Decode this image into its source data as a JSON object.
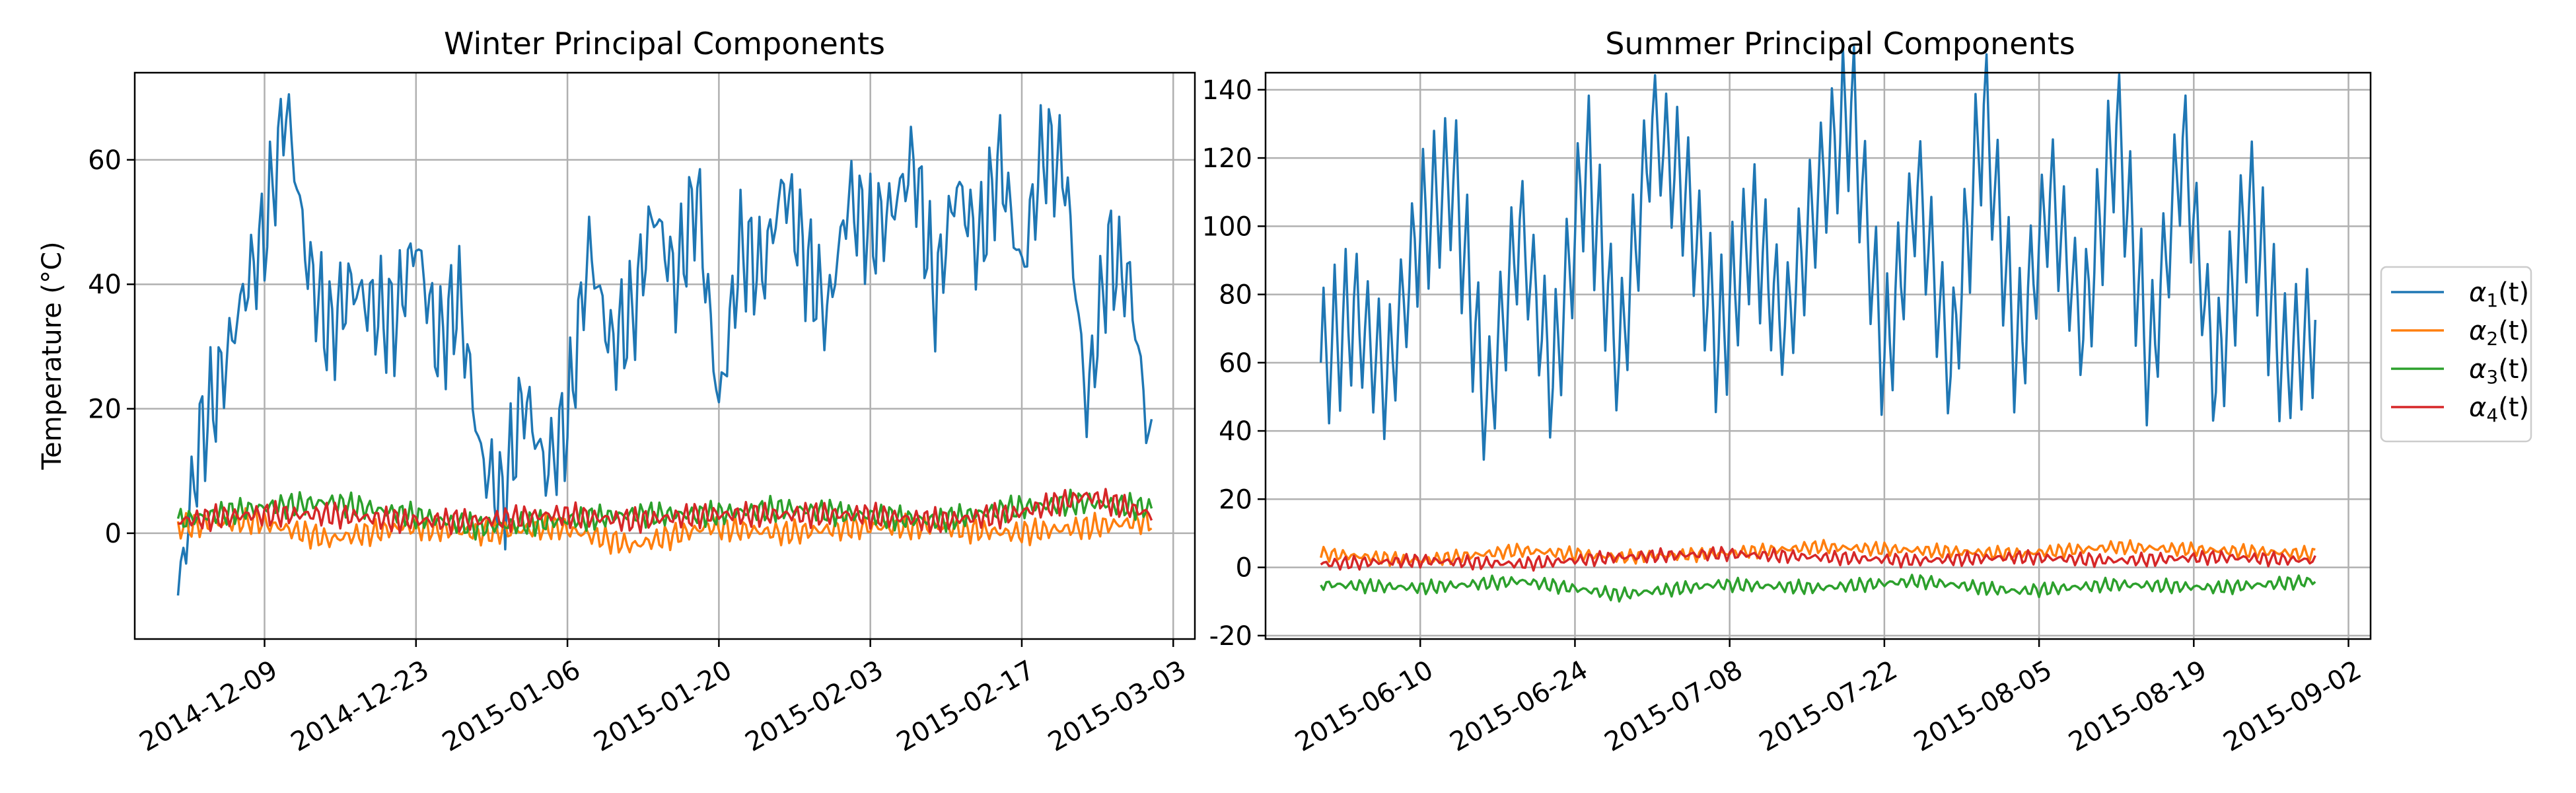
{
  "chart_data": [
    {
      "type": "line",
      "title": "Winter Principal Components",
      "xlabel": "",
      "ylabel": "Temperature ($^\\circ$C)",
      "ylabel_display": "Temperature (°C)",
      "x_ticks": [
        "2014-12-09",
        "2014-12-23",
        "2015-01-06",
        "2015-01-20",
        "2015-02-03",
        "2015-02-17",
        "2015-03-03"
      ],
      "xlim": [
        "2014-11-27",
        "2015-03-05"
      ],
      "y_ticks": [
        0,
        20,
        40,
        60
      ],
      "ylim": [
        -17,
        74
      ],
      "grid": true,
      "series": [
        {
          "key": "a1",
          "color": "#1f77b4",
          "x": [
            "2014-12-01",
            "2014-12-03",
            "2014-12-05",
            "2014-12-07",
            "2014-12-09",
            "2014-12-11",
            "2014-12-13",
            "2014-12-15",
            "2014-12-17",
            "2014-12-19",
            "2014-12-21",
            "2014-12-23",
            "2014-12-25",
            "2014-12-27",
            "2014-12-29",
            "2014-12-31",
            "2015-01-02",
            "2015-01-04",
            "2015-01-06",
            "2015-01-08",
            "2015-01-10",
            "2015-01-12",
            "2015-01-14",
            "2015-01-16",
            "2015-01-18",
            "2015-01-20",
            "2015-01-22",
            "2015-01-24",
            "2015-01-26",
            "2015-01-28",
            "2015-01-30",
            "2015-02-01",
            "2015-02-03",
            "2015-02-05",
            "2015-02-07",
            "2015-02-09",
            "2015-02-11",
            "2015-02-13",
            "2015-02-15",
            "2015-02-17",
            "2015-02-19",
            "2015-02-21",
            "2015-02-23",
            "2015-02-25",
            "2015-02-27",
            "2015-03-01"
          ],
          "values": [
            -10,
            15,
            25,
            38,
            48,
            69,
            43,
            32,
            40,
            36,
            34,
            47,
            30,
            38,
            12,
            5,
            22,
            10,
            18,
            46,
            30,
            35,
            52,
            40,
            55,
            20,
            46,
            42,
            56,
            44,
            35,
            54,
            48,
            52,
            60,
            38,
            56,
            46,
            60,
            42,
            62,
            58,
            20,
            45,
            40,
            12
          ]
        },
        {
          "key": "a2",
          "color": "#ff7f0e",
          "x": [
            "2014-12-01",
            "2014-12-08",
            "2014-12-15",
            "2014-12-22",
            "2014-12-29",
            "2015-01-05",
            "2015-01-12",
            "2015-01-19",
            "2015-01-26",
            "2015-02-02",
            "2015-02-09",
            "2015-02-16",
            "2015-02-23",
            "2015-03-01"
          ],
          "values": [
            1,
            2,
            -1,
            1,
            0,
            1,
            -2,
            1,
            0,
            1,
            1,
            0,
            1,
            2
          ]
        },
        {
          "key": "a3",
          "color": "#2ca02c",
          "x": [
            "2014-12-01",
            "2014-12-08",
            "2014-12-15",
            "2014-12-22",
            "2014-12-29",
            "2015-01-05",
            "2015-01-12",
            "2015-01-19",
            "2015-01-26",
            "2015-02-02",
            "2015-02-09",
            "2015-02-16",
            "2015-02-23",
            "2015-03-01"
          ],
          "values": [
            2,
            4,
            5,
            3,
            1,
            2,
            3,
            3,
            4,
            3,
            2,
            4,
            5,
            4
          ]
        },
        {
          "key": "a4",
          "color": "#d62728",
          "x": [
            "2014-12-01",
            "2014-12-08",
            "2014-12-15",
            "2014-12-22",
            "2014-12-29",
            "2015-01-05",
            "2015-01-12",
            "2015-01-19",
            "2015-01-26",
            "2015-02-02",
            "2015-02-09",
            "2015-02-16",
            "2015-02-23",
            "2015-03-01"
          ],
          "values": [
            2,
            3,
            3,
            2,
            2,
            3,
            2,
            3,
            3,
            3,
            2,
            3,
            6,
            3
          ]
        }
      ]
    },
    {
      "type": "line",
      "title": "Summer Principal Components",
      "xlabel": "",
      "ylabel": "",
      "x_ticks": [
        "2015-06-10",
        "2015-06-24",
        "2015-07-08",
        "2015-07-22",
        "2015-08-05",
        "2015-08-19",
        "2015-09-02"
      ],
      "xlim": [
        "2015-05-27",
        "2015-09-04"
      ],
      "y_ticks": [
        -20,
        0,
        20,
        40,
        60,
        80,
        100,
        120,
        140
      ],
      "ylim": [
        -21,
        145
      ],
      "grid": true,
      "series": [
        {
          "key": "a1",
          "color": "#1f77b4",
          "x": [
            "2015-06-01",
            "2015-06-04",
            "2015-06-07",
            "2015-06-10",
            "2015-06-13",
            "2015-06-16",
            "2015-06-19",
            "2015-06-22",
            "2015-06-25",
            "2015-06-28",
            "2015-07-01",
            "2015-07-04",
            "2015-07-07",
            "2015-07-10",
            "2015-07-13",
            "2015-07-16",
            "2015-07-19",
            "2015-07-22",
            "2015-07-25",
            "2015-07-28",
            "2015-07-31",
            "2015-08-03",
            "2015-08-06",
            "2015-08-09",
            "2015-08-12",
            "2015-08-15",
            "2015-08-18",
            "2015-08-21",
            "2015-08-24",
            "2015-08-27",
            "2015-08-30"
          ],
          "values": [
            60,
            75,
            55,
            100,
            115,
            45,
            100,
            55,
            120,
            60,
            130,
            110,
            65,
            100,
            70,
            110,
            136,
            60,
            112,
            58,
            135,
            62,
            110,
            70,
            130,
            58,
            125,
            55,
            108,
            60,
            70
          ]
        },
        {
          "key": "a2",
          "color": "#ff7f0e",
          "x": [
            "2015-06-01",
            "2015-06-10",
            "2015-06-19",
            "2015-06-28",
            "2015-07-07",
            "2015-07-16",
            "2015-07-25",
            "2015-08-03",
            "2015-08-12",
            "2015-08-21",
            "2015-08-30"
          ],
          "values": [
            4,
            2,
            5,
            3,
            4,
            6,
            5,
            4,
            6,
            5,
            4
          ]
        },
        {
          "key": "a3",
          "color": "#2ca02c",
          "x": [
            "2015-06-01",
            "2015-06-10",
            "2015-06-19",
            "2015-06-28",
            "2015-07-07",
            "2015-07-16",
            "2015-07-25",
            "2015-08-03",
            "2015-08-12",
            "2015-08-21",
            "2015-08-30"
          ],
          "values": [
            -5,
            -6,
            -4,
            -8,
            -5,
            -6,
            -4,
            -7,
            -5,
            -6,
            -4
          ]
        },
        {
          "key": "a4",
          "color": "#d62728",
          "x": [
            "2015-06-01",
            "2015-06-10",
            "2015-06-19",
            "2015-06-28",
            "2015-07-07",
            "2015-07-16",
            "2015-07-25",
            "2015-08-03",
            "2015-08-12",
            "2015-08-21",
            "2015-08-30"
          ],
          "values": [
            1,
            2,
            1,
            3,
            4,
            3,
            2,
            3,
            2,
            3,
            2
          ]
        }
      ]
    }
  ],
  "legend": {
    "placement": "right",
    "entries": [
      {
        "key": "a1",
        "label": "$\\alpha_1(t)$",
        "symbol": "α",
        "sub": "1",
        "tail": "(t)",
        "color": "#1f77b4"
      },
      {
        "key": "a2",
        "label": "$\\alpha_2(t)$",
        "symbol": "α",
        "sub": "2",
        "tail": "(t)",
        "color": "#ff7f0e"
      },
      {
        "key": "a3",
        "label": "$\\alpha_3(t)$",
        "symbol": "α",
        "sub": "3",
        "tail": "(t)",
        "color": "#2ca02c"
      },
      {
        "key": "a4",
        "label": "$\\alpha_4(t)$",
        "symbol": "α",
        "sub": "4",
        "tail": "(t)",
        "color": "#d62728"
      }
    ]
  }
}
